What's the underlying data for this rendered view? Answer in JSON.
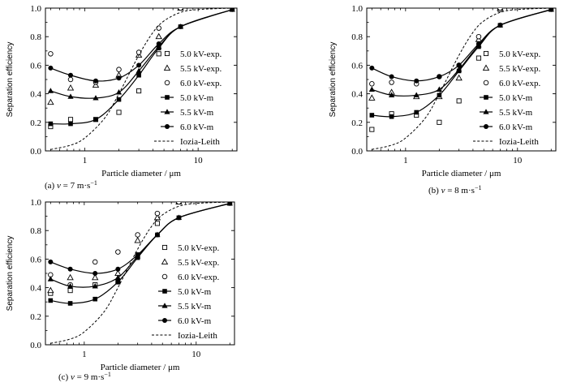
{
  "figure": {
    "units": {
      "velocity": "m·s",
      "velocity_exp": "−1"
    }
  },
  "chart_data": [
    {
      "type": "scatter",
      "panel": "(a)",
      "caption_prefix": "(a)",
      "caption_var": "v",
      "caption_eq": " = 7 m·s",
      "caption_exp": "−1",
      "xlabel": "Particle diameter / μm",
      "ylabel": "Separation efficiency",
      "xscale": "log",
      "xlim": [
        0.45,
        22
      ],
      "ylim": [
        0,
        1.0
      ],
      "xticks": [
        {
          "value": 1,
          "label": "1"
        },
        {
          "value": 10,
          "label": "10"
        }
      ],
      "yticks": [
        "0.0",
        "0.2",
        "0.4",
        "0.6",
        "0.8",
        "1.0"
      ],
      "series": [
        {
          "name": "5.0 kV-exp.",
          "marker": "square-open",
          "kind": "exp",
          "points": [
            [
              0.5,
              0.17
            ],
            [
              0.75,
              0.22
            ],
            [
              1.25,
              0.22
            ],
            [
              2.0,
              0.27
            ],
            [
              3.0,
              0.42
            ],
            [
              4.5,
              0.68
            ],
            [
              7.0,
              1.0
            ]
          ]
        },
        {
          "name": "5.5 kV-exp.",
          "marker": "triangle-open",
          "kind": "exp",
          "points": [
            [
              0.5,
              0.34
            ],
            [
              0.75,
              0.44
            ],
            [
              1.25,
              0.46
            ],
            [
              2.0,
              0.53
            ],
            [
              3.0,
              0.67
            ],
            [
              4.5,
              0.8
            ],
            [
              7.0,
              1.0
            ]
          ]
        },
        {
          "name": "6.0 kV-exp.",
          "marker": "circle-open",
          "kind": "exp",
          "points": [
            [
              0.5,
              0.68
            ],
            [
              0.75,
              0.5
            ],
            [
              1.25,
              0.48
            ],
            [
              2.0,
              0.57
            ],
            [
              3.0,
              0.69
            ],
            [
              4.5,
              0.86
            ],
            [
              7.0,
              1.0
            ]
          ]
        },
        {
          "name": "5.0 kV-m",
          "marker": "square-filled",
          "kind": "model",
          "points": [
            [
              0.5,
              0.19
            ],
            [
              0.75,
              0.19
            ],
            [
              1.25,
              0.22
            ],
            [
              2.0,
              0.36
            ],
            [
              3.0,
              0.53
            ],
            [
              4.5,
              0.72
            ],
            [
              7.0,
              0.87
            ],
            [
              20.0,
              0.99
            ]
          ]
        },
        {
          "name": "5.5 kV-m",
          "marker": "triangle-filled",
          "kind": "model",
          "points": [
            [
              0.5,
              0.42
            ],
            [
              0.75,
              0.38
            ],
            [
              1.25,
              0.37
            ],
            [
              2.0,
              0.41
            ],
            [
              3.0,
              0.56
            ],
            [
              4.5,
              0.73
            ],
            [
              7.0,
              0.87
            ],
            [
              20.0,
              0.99
            ]
          ]
        },
        {
          "name": "6.0 kV-m",
          "marker": "circle-filled",
          "kind": "model",
          "points": [
            [
              0.5,
              0.58
            ],
            [
              0.75,
              0.53
            ],
            [
              1.25,
              0.49
            ],
            [
              2.0,
              0.51
            ],
            [
              3.0,
              0.6
            ],
            [
              4.5,
              0.75
            ],
            [
              7.0,
              0.87
            ],
            [
              20.0,
              0.99
            ]
          ]
        },
        {
          "name": "Iozia-Leith",
          "marker": "none",
          "kind": "dashed",
          "points": [
            [
              0.5,
              0.01
            ],
            [
              0.75,
              0.04
            ],
            [
              1.0,
              0.09
            ],
            [
              1.5,
              0.23
            ],
            [
              2.0,
              0.4
            ],
            [
              3.0,
              0.67
            ],
            [
              4.0,
              0.83
            ],
            [
              5.0,
              0.91
            ],
            [
              7.0,
              0.97
            ],
            [
              10.0,
              0.99
            ],
            [
              20.0,
              1.0
            ]
          ]
        }
      ]
    },
    {
      "type": "scatter",
      "panel": "(b)",
      "caption_prefix": "(b)",
      "caption_var": "v",
      "caption_eq": " = 8 m·s",
      "caption_exp": "−1",
      "xlabel": "Particle diameter / μm",
      "ylabel": "Separation efficiency",
      "xscale": "log",
      "xlim": [
        0.45,
        22
      ],
      "ylim": [
        0,
        1.0
      ],
      "xticks": [
        {
          "value": 1,
          "label": "1"
        },
        {
          "value": 10,
          "label": "10"
        }
      ],
      "yticks": [
        "0.0",
        "0.2",
        "0.4",
        "0.6",
        "0.8",
        "1.0"
      ],
      "series": [
        {
          "name": "5.0 kV-exp.",
          "marker": "square-open",
          "kind": "exp",
          "points": [
            [
              0.5,
              0.15
            ],
            [
              0.75,
              0.26
            ],
            [
              1.25,
              0.25
            ],
            [
              2.0,
              0.2
            ],
            [
              3.0,
              0.35
            ],
            [
              4.5,
              0.65
            ],
            [
              7.0,
              0.99
            ]
          ]
        },
        {
          "name": "5.5 kV-exp.",
          "marker": "triangle-open",
          "kind": "exp",
          "points": [
            [
              0.5,
              0.37
            ],
            [
              0.75,
              0.41
            ],
            [
              1.25,
              0.38
            ],
            [
              2.0,
              0.38
            ],
            [
              3.0,
              0.51
            ],
            [
              4.5,
              0.78
            ],
            [
              7.0,
              1.0
            ]
          ]
        },
        {
          "name": "6.0 kV-exp.",
          "marker": "circle-open",
          "kind": "exp",
          "points": [
            [
              0.5,
              0.47
            ],
            [
              0.75,
              0.48
            ],
            [
              1.25,
              0.47
            ],
            [
              2.0,
              0.52
            ],
            [
              3.0,
              0.6
            ],
            [
              4.5,
              0.8
            ],
            [
              7.0,
              1.0
            ]
          ]
        },
        {
          "name": "5.0 kV-m",
          "marker": "square-filled",
          "kind": "model",
          "points": [
            [
              0.5,
              0.25
            ],
            [
              0.75,
              0.24
            ],
            [
              1.25,
              0.27
            ],
            [
              2.0,
              0.39
            ],
            [
              3.0,
              0.56
            ],
            [
              4.5,
              0.73
            ],
            [
              7.0,
              0.88
            ],
            [
              20.0,
              0.99
            ]
          ]
        },
        {
          "name": "5.5 kV-m",
          "marker": "triangle-filled",
          "kind": "model",
          "points": [
            [
              0.5,
              0.43
            ],
            [
              0.75,
              0.39
            ],
            [
              1.25,
              0.39
            ],
            [
              2.0,
              0.43
            ],
            [
              3.0,
              0.57
            ],
            [
              4.5,
              0.74
            ],
            [
              7.0,
              0.88
            ],
            [
              20.0,
              0.99
            ]
          ]
        },
        {
          "name": "6.0 kV-m",
          "marker": "circle-filled",
          "kind": "model",
          "points": [
            [
              0.5,
              0.58
            ],
            [
              0.75,
              0.52
            ],
            [
              1.25,
              0.49
            ],
            [
              2.0,
              0.52
            ],
            [
              3.0,
              0.6
            ],
            [
              4.5,
              0.75
            ],
            [
              7.0,
              0.88
            ],
            [
              20.0,
              0.99
            ]
          ]
        },
        {
          "name": "Iozia-Leith",
          "marker": "none",
          "kind": "dashed",
          "points": [
            [
              0.5,
              0.01
            ],
            [
              0.75,
              0.04
            ],
            [
              1.0,
              0.09
            ],
            [
              1.5,
              0.23
            ],
            [
              2.0,
              0.4
            ],
            [
              3.0,
              0.67
            ],
            [
              4.0,
              0.83
            ],
            [
              5.0,
              0.91
            ],
            [
              7.0,
              0.97
            ],
            [
              10.0,
              0.99
            ],
            [
              20.0,
              1.0
            ]
          ]
        }
      ]
    },
    {
      "type": "scatter",
      "panel": "(c)",
      "caption_prefix": "(c)",
      "caption_var": "v",
      "caption_eq": " = 9 m·s",
      "caption_exp": "−1",
      "xlabel": "Particle diameter / μm",
      "ylabel": "Separation efficiency",
      "xscale": "log",
      "xlim": [
        0.45,
        22
      ],
      "ylim": [
        0,
        1.0
      ],
      "xticks": [
        {
          "value": 1,
          "label": "1"
        },
        {
          "value": 10,
          "label": "10"
        }
      ],
      "yticks": [
        "0.0",
        "0.2",
        "0.4",
        "0.6",
        "0.8",
        "1.0"
      ],
      "series": [
        {
          "name": "5.0 kV-exp.",
          "marker": "square-open",
          "kind": "exp",
          "points": [
            [
              0.5,
              0.36
            ],
            [
              0.75,
              0.38
            ],
            [
              1.25,
              0.42
            ],
            [
              2.0,
              0.44
            ],
            [
              3.0,
              0.63
            ],
            [
              4.5,
              0.85
            ],
            [
              7.0,
              1.0
            ]
          ]
        },
        {
          "name": "5.5 kV-exp.",
          "marker": "triangle-open",
          "kind": "exp",
          "points": [
            [
              0.5,
              0.38
            ],
            [
              0.75,
              0.47
            ],
            [
              1.25,
              0.47
            ],
            [
              2.0,
              0.5
            ],
            [
              3.0,
              0.73
            ],
            [
              4.5,
              0.89
            ],
            [
              7.0,
              1.0
            ]
          ]
        },
        {
          "name": "6.0 kV-exp.",
          "marker": "circle-open",
          "kind": "exp",
          "points": [
            [
              0.5,
              0.49
            ],
            [
              0.75,
              0.42
            ],
            [
              1.25,
              0.58
            ],
            [
              2.0,
              0.65
            ],
            [
              3.0,
              0.77
            ],
            [
              4.5,
              0.92
            ],
            [
              7.0,
              1.0
            ]
          ]
        },
        {
          "name": "5.0 kV-m",
          "marker": "square-filled",
          "kind": "model",
          "points": [
            [
              0.5,
              0.31
            ],
            [
              0.75,
              0.29
            ],
            [
              1.25,
              0.32
            ],
            [
              2.0,
              0.44
            ],
            [
              3.0,
              0.61
            ],
            [
              4.5,
              0.77
            ],
            [
              7.0,
              0.89
            ],
            [
              20.0,
              0.99
            ]
          ]
        },
        {
          "name": "5.5 kV-m",
          "marker": "triangle-filled",
          "kind": "model",
          "points": [
            [
              0.5,
              0.46
            ],
            [
              0.75,
              0.41
            ],
            [
              1.25,
              0.41
            ],
            [
              2.0,
              0.47
            ],
            [
              3.0,
              0.62
            ],
            [
              4.5,
              0.77
            ],
            [
              7.0,
              0.89
            ],
            [
              20.0,
              0.99
            ]
          ]
        },
        {
          "name": "6.0 kV-m",
          "marker": "circle-filled",
          "kind": "model",
          "points": [
            [
              0.5,
              0.58
            ],
            [
              0.75,
              0.53
            ],
            [
              1.25,
              0.5
            ],
            [
              2.0,
              0.53
            ],
            [
              3.0,
              0.63
            ],
            [
              4.5,
              0.77
            ],
            [
              7.0,
              0.89
            ],
            [
              20.0,
              0.99
            ]
          ]
        },
        {
          "name": "Iozia-Leith",
          "marker": "none",
          "kind": "dashed",
          "points": [
            [
              0.5,
              0.01
            ],
            [
              0.75,
              0.04
            ],
            [
              1.0,
              0.09
            ],
            [
              1.5,
              0.23
            ],
            [
              2.0,
              0.4
            ],
            [
              3.0,
              0.67
            ],
            [
              4.0,
              0.83
            ],
            [
              5.0,
              0.91
            ],
            [
              7.0,
              0.97
            ],
            [
              10.0,
              0.99
            ],
            [
              20.0,
              1.0
            ]
          ]
        }
      ]
    }
  ]
}
